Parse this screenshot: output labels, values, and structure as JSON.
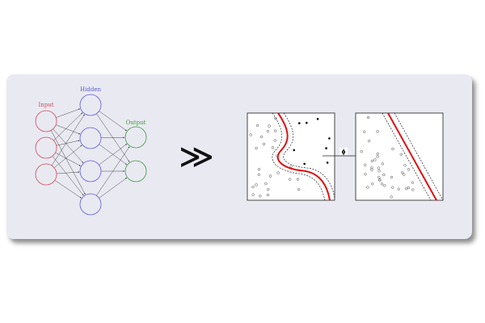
{
  "network": {
    "input_label": "Input",
    "hidden_label": "Hidden",
    "output_label": "Output",
    "input_nodes": 3,
    "hidden_nodes": 4,
    "output_nodes": 2,
    "input_color": "#d04a55",
    "hidden_color": "#5a5ad6",
    "output_color": "#3a9a3a"
  },
  "arrow_symbol": "≫",
  "mapping_label": "ϕ",
  "colors": {
    "panel_bg": "#e9e9f2",
    "decision_boundary": "#e01010",
    "margin_line": "#000000",
    "plot_border": "#333333"
  },
  "icons": {
    "transform_arrow": "much-greater-than-icon"
  }
}
